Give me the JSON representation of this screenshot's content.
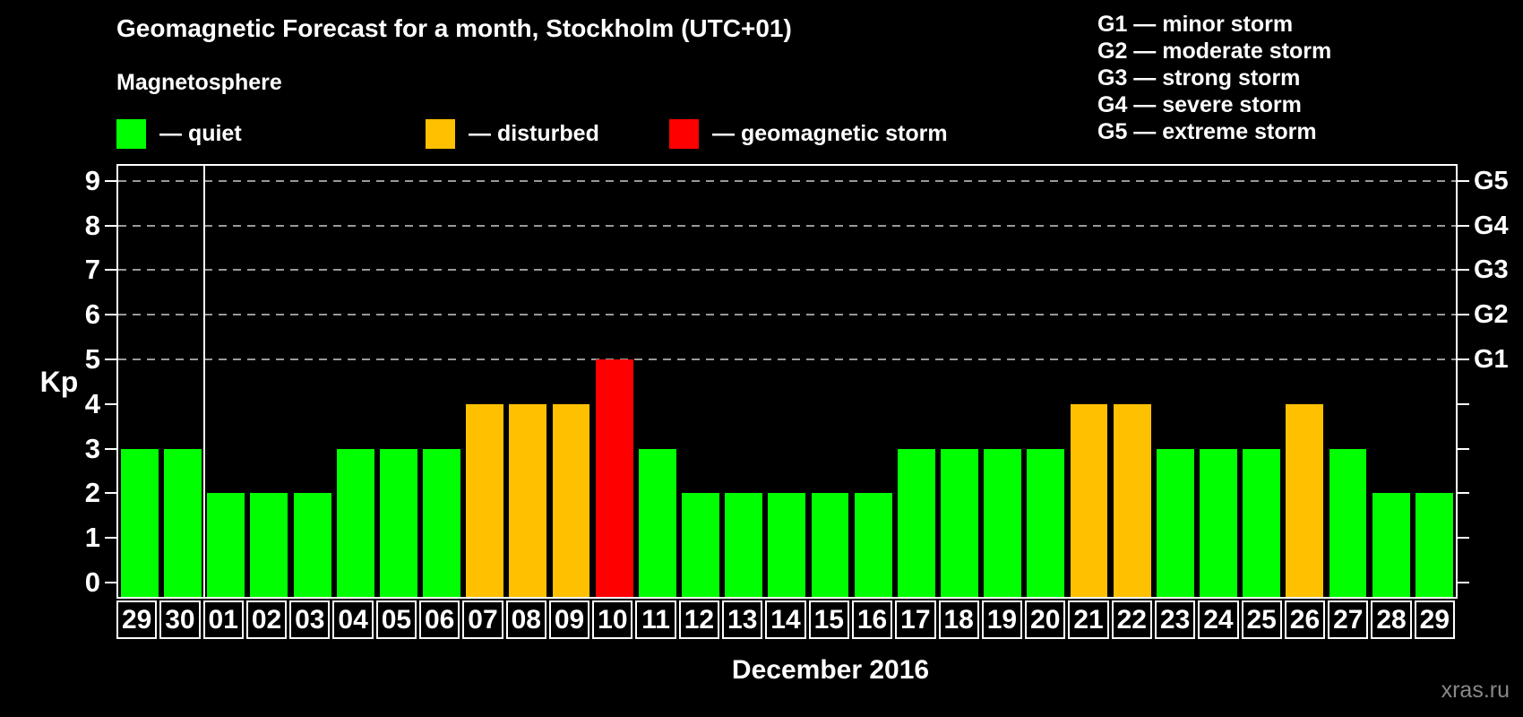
{
  "header": {
    "title": "Geomagnetic Forecast for a month, Stockholm (UTC+01)",
    "subtitle": "Magnetosphere"
  },
  "legend": {
    "items": [
      {
        "key": "quiet",
        "label": "— quiet",
        "color": "#00ff00"
      },
      {
        "key": "disturbed",
        "label": "— disturbed",
        "color": "#ffc000"
      },
      {
        "key": "storm",
        "label": "— geomagnetic storm",
        "color": "#ff0000"
      }
    ]
  },
  "storm_scale_legend": [
    "G1 — minor storm",
    "G2 — moderate storm",
    "G3 — strong storm",
    "G4 — severe storm",
    "G5 — extreme storm"
  ],
  "watermark": "xras.ru",
  "chart_data": {
    "type": "bar",
    "title": "Geomagnetic Forecast for a month, Stockholm (UTC+01)",
    "xlabel": "December 2016",
    "ylabel": "Kp",
    "ylim": [
      0,
      9
    ],
    "yticks": [
      0,
      1,
      2,
      3,
      4,
      5,
      6,
      7,
      8,
      9
    ],
    "gridlines_at": [
      5,
      6,
      7,
      8,
      9
    ],
    "grid": "dashed horizontal lines at storm levels G1–G5 (Kp 5–9)",
    "legend_position": "top",
    "right_axis": [
      {
        "kp": 5,
        "label": "G1"
      },
      {
        "kp": 6,
        "label": "G2"
      },
      {
        "kp": 7,
        "label": "G3"
      },
      {
        "kp": 8,
        "label": "G4"
      },
      {
        "kp": 9,
        "label": "G5"
      }
    ],
    "month_separator_after_index": 1,
    "categories": [
      "29",
      "30",
      "01",
      "02",
      "03",
      "04",
      "05",
      "06",
      "07",
      "08",
      "09",
      "10",
      "11",
      "12",
      "13",
      "14",
      "15",
      "16",
      "17",
      "18",
      "19",
      "20",
      "21",
      "22",
      "23",
      "24",
      "25",
      "26",
      "27",
      "28",
      "29"
    ],
    "values": [
      3,
      3,
      2,
      2,
      2,
      3,
      3,
      3,
      4,
      4,
      4,
      5,
      3,
      2,
      2,
      2,
      2,
      2,
      3,
      3,
      3,
      3,
      4,
      4,
      3,
      3,
      3,
      4,
      3,
      2,
      2
    ],
    "statuses": [
      "quiet",
      "quiet",
      "quiet",
      "quiet",
      "quiet",
      "quiet",
      "quiet",
      "quiet",
      "disturbed",
      "disturbed",
      "disturbed",
      "storm",
      "quiet",
      "quiet",
      "quiet",
      "quiet",
      "quiet",
      "quiet",
      "quiet",
      "quiet",
      "quiet",
      "quiet",
      "disturbed",
      "disturbed",
      "quiet",
      "quiet",
      "quiet",
      "disturbed",
      "quiet",
      "quiet",
      "quiet"
    ],
    "status_colors": {
      "quiet": "#00ff00",
      "disturbed": "#ffc000",
      "storm": "#ff0000"
    }
  }
}
